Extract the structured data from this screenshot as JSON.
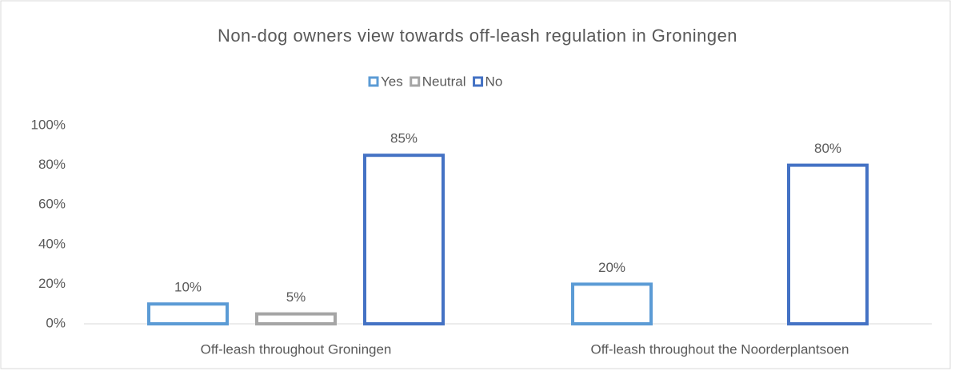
{
  "chart_data": {
    "type": "bar",
    "title": "Non-dog owners view towards off-leash regulation in Groningen",
    "categories": [
      "Off-leash throughout Groningen",
      "Off-leash throughout the Noorderplantsoen"
    ],
    "series": [
      {
        "name": "Yes",
        "color": "#5B9BD5",
        "values": [
          10,
          20
        ],
        "value_labels": [
          "10%",
          "20%"
        ]
      },
      {
        "name": "Neutral",
        "color": "#A5A5A5",
        "values": [
          5,
          null
        ],
        "value_labels": [
          "5%",
          null
        ]
      },
      {
        "name": "No",
        "color": "#4472C4",
        "values": [
          85,
          80
        ],
        "value_labels": [
          "85%",
          "80%"
        ]
      }
    ],
    "ylim": [
      0,
      100
    ],
    "yticks": [
      {
        "value": 0,
        "label": "0%"
      },
      {
        "value": 20,
        "label": "20%"
      },
      {
        "value": 40,
        "label": "40%"
      },
      {
        "value": 60,
        "label": "60%"
      },
      {
        "value": 80,
        "label": "80%"
      },
      {
        "value": 100,
        "label": "100%"
      }
    ],
    "legend": "top"
  }
}
